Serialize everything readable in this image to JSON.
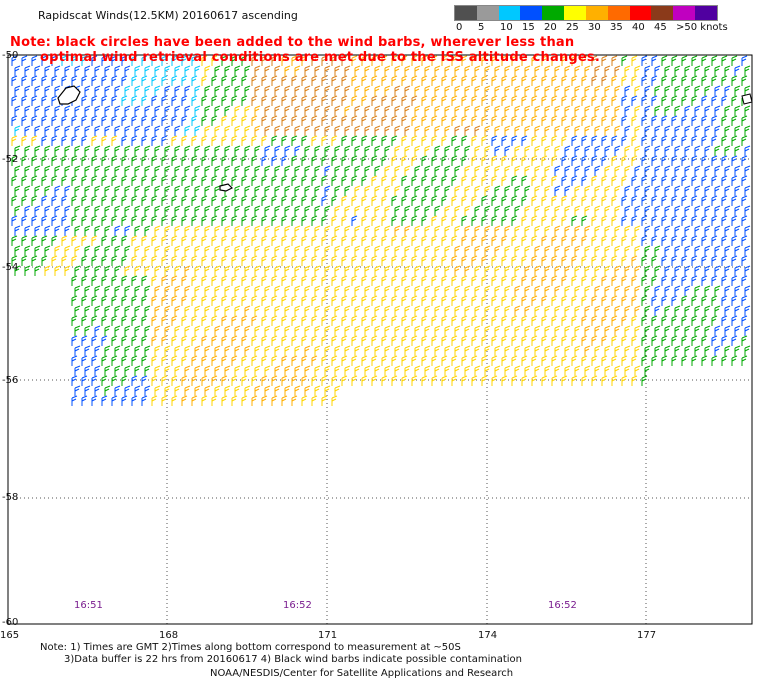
{
  "header": {
    "title": "Rapidscat Winds(12.5KM) 20160617 ascending",
    "note_line1": "Note: black circles have been added to the wind barbs, wherever less than",
    "note_line2": "optimal wind retrieval conditions are met due to the ISS altitude changes."
  },
  "legend": {
    "labels": [
      "0",
      "5",
      "10",
      "15",
      "20",
      "25",
      "30",
      "35",
      "40",
      "45",
      ">50 knots"
    ],
    "colors": [
      "#505050",
      "#9a9a9a",
      "#00c8ff",
      "#0050ff",
      "#00aa00",
      "#ffff00",
      "#ffb000",
      "#ff6a00",
      "#ff0000",
      "#8b3a1a",
      "#c000c0",
      "#5000a0"
    ]
  },
  "axes": {
    "lat_labels": [
      "-50",
      "-52",
      "-54",
      "-56",
      "-58",
      "-60"
    ],
    "lon_labels": [
      "165",
      "168",
      "171",
      "174",
      "177"
    ]
  },
  "times": [
    "16:51",
    "16:52",
    "16:52"
  ],
  "footer": {
    "line1": "Note: 1) Times are GMT 2)Times along bottom correspond to measurement at ~50S",
    "line2": "3)Data buffer is 22 hrs from 20160617 4) Black wind barbs indicate possible contamination",
    "line3": "NOAA/NESDIS/Center for Satellite Applications and Research"
  }
}
